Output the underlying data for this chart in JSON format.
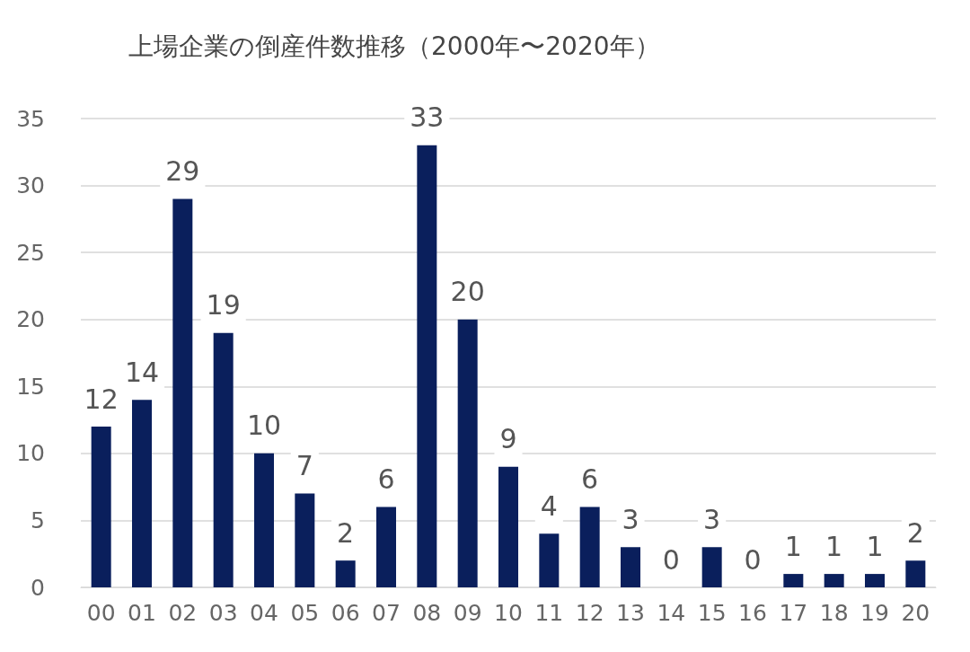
{
  "chart_data": {
    "type": "bar",
    "title": "上場企業の倒産件数推移（2000年〜2020年）",
    "categories": [
      "00",
      "01",
      "02",
      "03",
      "04",
      "05",
      "06",
      "07",
      "08",
      "09",
      "10",
      "11",
      "12",
      "13",
      "14",
      "15",
      "16",
      "17",
      "18",
      "19",
      "20"
    ],
    "values": [
      12,
      14,
      29,
      19,
      10,
      7,
      2,
      6,
      33,
      20,
      9,
      4,
      6,
      3,
      0,
      3,
      0,
      1,
      1,
      1,
      2
    ],
    "color": "#0a1f5c",
    "ylim": [
      0,
      35
    ],
    "yticks": [
      0,
      5,
      10,
      15,
      20,
      25,
      30,
      35
    ],
    "grid": "y",
    "data_labels": true
  }
}
